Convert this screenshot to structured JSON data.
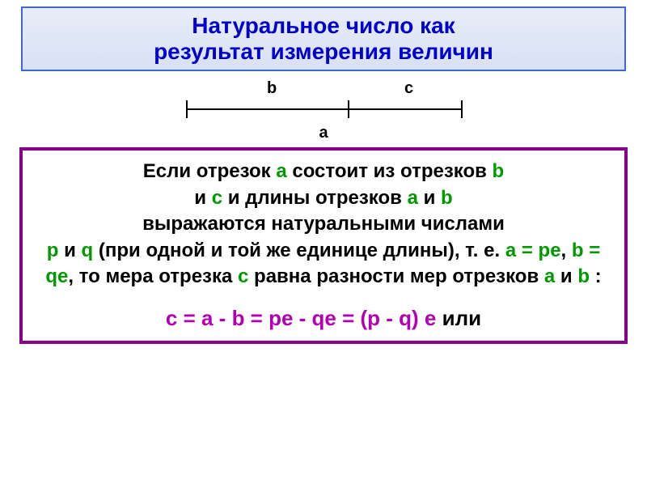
{
  "title": {
    "line1": "Натуральное число как",
    "line2": "результат измерения величин",
    "text_color": "#0000cc",
    "border_color": "#4169cc",
    "bg_gradient_top": "#e8edf8",
    "bg_gradient_bottom": "#d8e0f4",
    "font_size": 28
  },
  "diagram": {
    "label_b": "b",
    "label_c": "c",
    "label_a": "a",
    "line_color": "#000000",
    "tick_height": 22,
    "segment_width": 340
  },
  "content": {
    "border_color": "#8a008a",
    "border_width": 4,
    "font_size": 24,
    "green_color": "#009a00",
    "magenta_color": "#b300b3",
    "t1": "Если отрезок ",
    "a1": "a",
    "t2": " состоит из отрезков ",
    "b1": "b",
    "t3": " и ",
    "c1": "c",
    "t4": " и длины отрезков ",
    "a2": "a",
    "t5": " и ",
    "b2": "b",
    "t6": " выражаются натуральными числами ",
    "p1": "p",
    "t7": " и ",
    "q1": "q",
    "t8": " (при одной и той же единице длины), т. е. ",
    "eq1": "a = pe",
    "t9": ", ",
    "eq2": "b = qe",
    "t10": ", то мера отрезка ",
    "c2": "c",
    "t11": " равна разности мер отрезков ",
    "a3": "a",
    "t12": " и ",
    "b3": "b",
    "t13": " :",
    "equation": "c = a - b = pe - qe = (p - q) e",
    "t14": " или"
  }
}
